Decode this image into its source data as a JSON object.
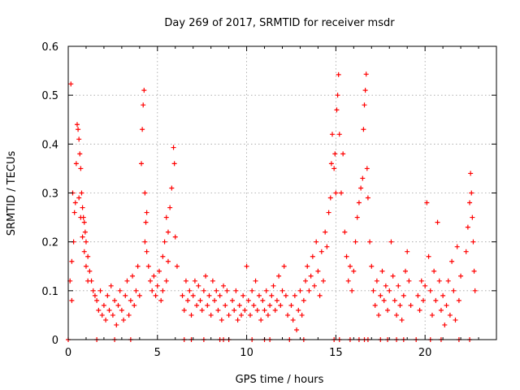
{
  "chart_data": {
    "type": "scatter",
    "title": "Day 269 of 2017, SRMTID for receiver msdr",
    "xlabel": "GPS time / hours",
    "ylabel": "SRMTID / TECUs",
    "xlim": [
      0,
      24
    ],
    "ylim": [
      0,
      0.6
    ],
    "xticks": [
      0,
      5,
      10,
      15,
      20
    ],
    "yticks": [
      0,
      0.1,
      0.2,
      0.3,
      0.4,
      0.5,
      0.6
    ],
    "grid": true,
    "marker": "plus",
    "color": "#ff0000",
    "series": [
      {
        "name": "SRMTID",
        "points": [
          [
            0.15,
            0.523
          ],
          [
            0.25,
            0.3
          ],
          [
            0.35,
            0.26
          ],
          [
            0.45,
            0.36
          ],
          [
            0.5,
            0.44
          ],
          [
            0.55,
            0.43
          ],
          [
            0.6,
            0.41
          ],
          [
            0.65,
            0.38
          ],
          [
            0.7,
            0.35
          ],
          [
            0.75,
            0.3
          ],
          [
            0.8,
            0.27
          ],
          [
            0.85,
            0.25
          ],
          [
            0.9,
            0.24
          ],
          [
            0.95,
            0.22
          ],
          [
            1.0,
            0.2
          ],
          [
            1.1,
            0.17
          ],
          [
            1.2,
            0.14
          ],
          [
            1.3,
            0.12
          ],
          [
            1.4,
            0.1
          ],
          [
            1.5,
            0.09
          ],
          [
            0.2,
            0.16
          ],
          [
            0.3,
            0.2
          ],
          [
            0.4,
            0.28
          ],
          [
            0.6,
            0.29
          ],
          [
            0.7,
            0.25
          ],
          [
            0.8,
            0.21
          ],
          [
            0.9,
            0.18
          ],
          [
            1.0,
            0.15
          ],
          [
            1.1,
            0.12
          ],
          [
            0.1,
            0.12
          ],
          [
            0.2,
            0.08
          ],
          [
            1.6,
            0.08
          ],
          [
            1.7,
            0.06
          ],
          [
            1.8,
            0.1
          ],
          [
            1.9,
            0.05
          ],
          [
            2.0,
            0.07
          ],
          [
            2.1,
            0.04
          ],
          [
            2.2,
            0.09
          ],
          [
            2.3,
            0.06
          ],
          [
            2.4,
            0.11
          ],
          [
            2.5,
            0.05
          ],
          [
            2.6,
            0.08
          ],
          [
            2.7,
            0.03
          ],
          [
            2.8,
            0.07
          ],
          [
            2.9,
            0.1
          ],
          [
            3.0,
            0.06
          ],
          [
            3.1,
            0.04
          ],
          [
            3.2,
            0.09
          ],
          [
            3.3,
            0.12
          ],
          [
            3.4,
            0.05
          ],
          [
            3.5,
            0.08
          ],
          [
            3.6,
            0.13
          ],
          [
            3.7,
            0.07
          ],
          [
            3.8,
            0.1
          ],
          [
            3.9,
            0.15
          ],
          [
            4.0,
            0.09
          ],
          [
            4.1,
            0.36
          ],
          [
            4.15,
            0.43
          ],
          [
            4.2,
            0.48
          ],
          [
            4.25,
            0.51
          ],
          [
            4.3,
            0.3
          ],
          [
            4.35,
            0.24
          ],
          [
            4.4,
            0.18
          ],
          [
            4.5,
            0.15
          ],
          [
            4.6,
            0.12
          ],
          [
            4.7,
            0.1
          ],
          [
            4.8,
            0.13
          ],
          [
            4.9,
            0.09
          ],
          [
            5.0,
            0.11
          ],
          [
            5.1,
            0.14
          ],
          [
            5.2,
            0.08
          ],
          [
            5.3,
            0.1
          ],
          [
            5.4,
            0.2
          ],
          [
            5.5,
            0.25
          ],
          [
            5.6,
            0.22
          ],
          [
            5.7,
            0.27
          ],
          [
            5.8,
            0.31
          ],
          [
            5.9,
            0.393
          ],
          [
            5.95,
            0.36
          ],
          [
            6.0,
            0.21
          ],
          [
            6.1,
            0.15
          ],
          [
            5.5,
            0.12
          ],
          [
            5.6,
            0.16
          ],
          [
            5.3,
            0.17
          ],
          [
            4.4,
            0.26
          ],
          [
            4.3,
            0.2
          ],
          [
            6.4,
            0.09
          ],
          [
            6.5,
            0.06
          ],
          [
            6.6,
            0.12
          ],
          [
            6.7,
            0.08
          ],
          [
            6.8,
            0.1
          ],
          [
            6.9,
            0.05
          ],
          [
            7.0,
            0.09
          ],
          [
            7.1,
            0.12
          ],
          [
            7.2,
            0.07
          ],
          [
            7.3,
            0.11
          ],
          [
            7.4,
            0.08
          ],
          [
            7.5,
            0.06
          ],
          [
            7.6,
            0.1
          ],
          [
            7.7,
            0.13
          ],
          [
            7.8,
            0.07
          ],
          [
            7.9,
            0.09
          ],
          [
            8.0,
            0.05
          ],
          [
            8.1,
            0.12
          ],
          [
            8.2,
            0.08
          ],
          [
            8.3,
            0.1
          ],
          [
            8.4,
            0.06
          ],
          [
            8.5,
            0.09
          ],
          [
            8.6,
            0.04
          ],
          [
            8.7,
            0.11
          ],
          [
            8.8,
            0.07
          ],
          [
            8.9,
            0.1
          ],
          [
            9.0,
            0.05
          ],
          [
            9.2,
            0.08
          ],
          [
            9.3,
            0.06
          ],
          [
            9.4,
            0.1
          ],
          [
            9.5,
            0.04
          ],
          [
            9.6,
            0.07
          ],
          [
            9.7,
            0.05
          ],
          [
            9.8,
            0.09
          ],
          [
            9.9,
            0.06
          ],
          [
            10.0,
            0.15
          ],
          [
            10.1,
            0.08
          ],
          [
            10.2,
            0.05
          ],
          [
            10.3,
            0.1
          ],
          [
            10.4,
            0.07
          ],
          [
            10.5,
            0.12
          ],
          [
            10.6,
            0.06
          ],
          [
            10.7,
            0.09
          ],
          [
            10.8,
            0.04
          ],
          [
            10.9,
            0.08
          ],
          [
            11.0,
            0.06
          ],
          [
            11.1,
            0.1
          ],
          [
            11.2,
            0.05
          ],
          [
            11.3,
            0.07
          ],
          [
            11.4,
            0.09
          ],
          [
            11.5,
            0.11
          ],
          [
            11.6,
            0.06
          ],
          [
            11.7,
            0.08
          ],
          [
            11.8,
            0.13
          ],
          [
            11.9,
            0.07
          ],
          [
            12.0,
            0.1
          ],
          [
            12.1,
            0.15
          ],
          [
            12.2,
            0.09
          ],
          [
            12.3,
            0.05
          ],
          [
            12.5,
            0.07
          ],
          [
            12.6,
            0.04
          ],
          [
            12.7,
            0.09
          ],
          [
            12.8,
            0.02
          ],
          [
            12.9,
            0.06
          ],
          [
            13.0,
            0.1
          ],
          [
            13.1,
            0.05
          ],
          [
            13.2,
            0.08
          ],
          [
            13.3,
            0.12
          ],
          [
            13.4,
            0.15
          ],
          [
            13.5,
            0.1
          ],
          [
            13.6,
            0.13
          ],
          [
            13.7,
            0.17
          ],
          [
            13.8,
            0.11
          ],
          [
            13.9,
            0.2
          ],
          [
            14.0,
            0.14
          ],
          [
            14.1,
            0.09
          ],
          [
            14.2,
            0.18
          ],
          [
            14.3,
            0.12
          ],
          [
            14.4,
            0.22
          ],
          [
            14.5,
            0.19
          ],
          [
            14.6,
            0.26
          ],
          [
            14.7,
            0.29
          ],
          [
            14.75,
            0.36
          ],
          [
            14.8,
            0.42
          ],
          [
            14.9,
            0.35
          ],
          [
            14.95,
            0.38
          ],
          [
            15.0,
            0.3
          ],
          [
            15.05,
            0.47
          ],
          [
            15.1,
            0.5
          ],
          [
            15.15,
            0.542
          ],
          [
            15.2,
            0.42
          ],
          [
            15.3,
            0.3
          ],
          [
            15.4,
            0.38
          ],
          [
            15.5,
            0.22
          ],
          [
            15.6,
            0.17
          ],
          [
            15.7,
            0.12
          ],
          [
            15.8,
            0.15
          ],
          [
            15.9,
            0.1
          ],
          [
            16.0,
            0.14
          ],
          [
            16.1,
            0.2
          ],
          [
            16.2,
            0.25
          ],
          [
            16.3,
            0.28
          ],
          [
            16.4,
            0.31
          ],
          [
            16.5,
            0.33
          ],
          [
            16.55,
            0.43
          ],
          [
            16.6,
            0.48
          ],
          [
            16.65,
            0.51
          ],
          [
            16.7,
            0.543
          ],
          [
            16.75,
            0.35
          ],
          [
            16.8,
            0.29
          ],
          [
            16.9,
            0.2
          ],
          [
            17.0,
            0.15
          ],
          [
            17.1,
            0.1
          ],
          [
            17.2,
            0.07
          ],
          [
            17.3,
            0.12
          ],
          [
            17.4,
            0.05
          ],
          [
            17.5,
            0.09
          ],
          [
            17.6,
            0.14
          ],
          [
            17.7,
            0.08
          ],
          [
            17.8,
            0.11
          ],
          [
            17.9,
            0.06
          ],
          [
            18.0,
            0.1
          ],
          [
            18.1,
            0.2
          ],
          [
            18.2,
            0.13
          ],
          [
            18.3,
            0.08
          ],
          [
            18.4,
            0.05
          ],
          [
            18.5,
            0.11
          ],
          [
            18.6,
            0.07
          ],
          [
            18.7,
            0.04
          ],
          [
            18.8,
            0.09
          ],
          [
            18.9,
            0.14
          ],
          [
            19.0,
            0.18
          ],
          [
            19.1,
            0.12
          ],
          [
            19.2,
            0.07
          ],
          [
            19.6,
            0.09
          ],
          [
            19.7,
            0.06
          ],
          [
            19.8,
            0.12
          ],
          [
            19.9,
            0.08
          ],
          [
            20.0,
            0.11
          ],
          [
            20.1,
            0.28
          ],
          [
            20.2,
            0.17
          ],
          [
            20.3,
            0.1
          ],
          [
            20.4,
            0.05
          ],
          [
            20.5,
            0.14
          ],
          [
            20.6,
            0.08
          ],
          [
            20.7,
            0.24
          ],
          [
            20.8,
            0.12
          ],
          [
            20.9,
            0.06
          ],
          [
            21.0,
            0.09
          ],
          [
            21.1,
            0.03
          ],
          [
            21.2,
            0.07
          ],
          [
            21.3,
            0.12
          ],
          [
            21.4,
            0.05
          ],
          [
            21.5,
            0.16
          ],
          [
            21.6,
            0.1
          ],
          [
            21.7,
            0.04
          ],
          [
            21.8,
            0.19
          ],
          [
            21.9,
            0.08
          ],
          [
            22.0,
            0.13
          ],
          [
            22.3,
            0.18
          ],
          [
            22.4,
            0.23
          ],
          [
            22.5,
            0.28
          ],
          [
            22.55,
            0.34
          ],
          [
            22.6,
            0.3
          ],
          [
            22.65,
            0.25
          ],
          [
            22.7,
            0.2
          ],
          [
            22.75,
            0.14
          ],
          [
            22.8,
            0.1
          ]
        ]
      },
      {
        "name": "zero",
        "points": [
          [
            0.0,
            0
          ],
          [
            1.6,
            0
          ],
          [
            2.6,
            0
          ],
          [
            3.5,
            0
          ],
          [
            6.5,
            0
          ],
          [
            6.9,
            0
          ],
          [
            7.6,
            0
          ],
          [
            8.5,
            0
          ],
          [
            8.7,
            0
          ],
          [
            9.0,
            0
          ],
          [
            10.3,
            0
          ],
          [
            11.0,
            0
          ],
          [
            11.3,
            0
          ],
          [
            12.4,
            0
          ],
          [
            13.2,
            0
          ],
          [
            14.9,
            0
          ],
          [
            15.2,
            0
          ],
          [
            15.8,
            0
          ],
          [
            16.3,
            0
          ],
          [
            16.6,
            0
          ],
          [
            16.8,
            0
          ],
          [
            17.5,
            0
          ],
          [
            17.9,
            0
          ],
          [
            18.4,
            0
          ],
          [
            18.8,
            0
          ],
          [
            19.5,
            0
          ],
          [
            20.3,
            0
          ],
          [
            20.9,
            0
          ],
          [
            21.9,
            0
          ],
          [
            22.5,
            0
          ]
        ]
      }
    ]
  }
}
